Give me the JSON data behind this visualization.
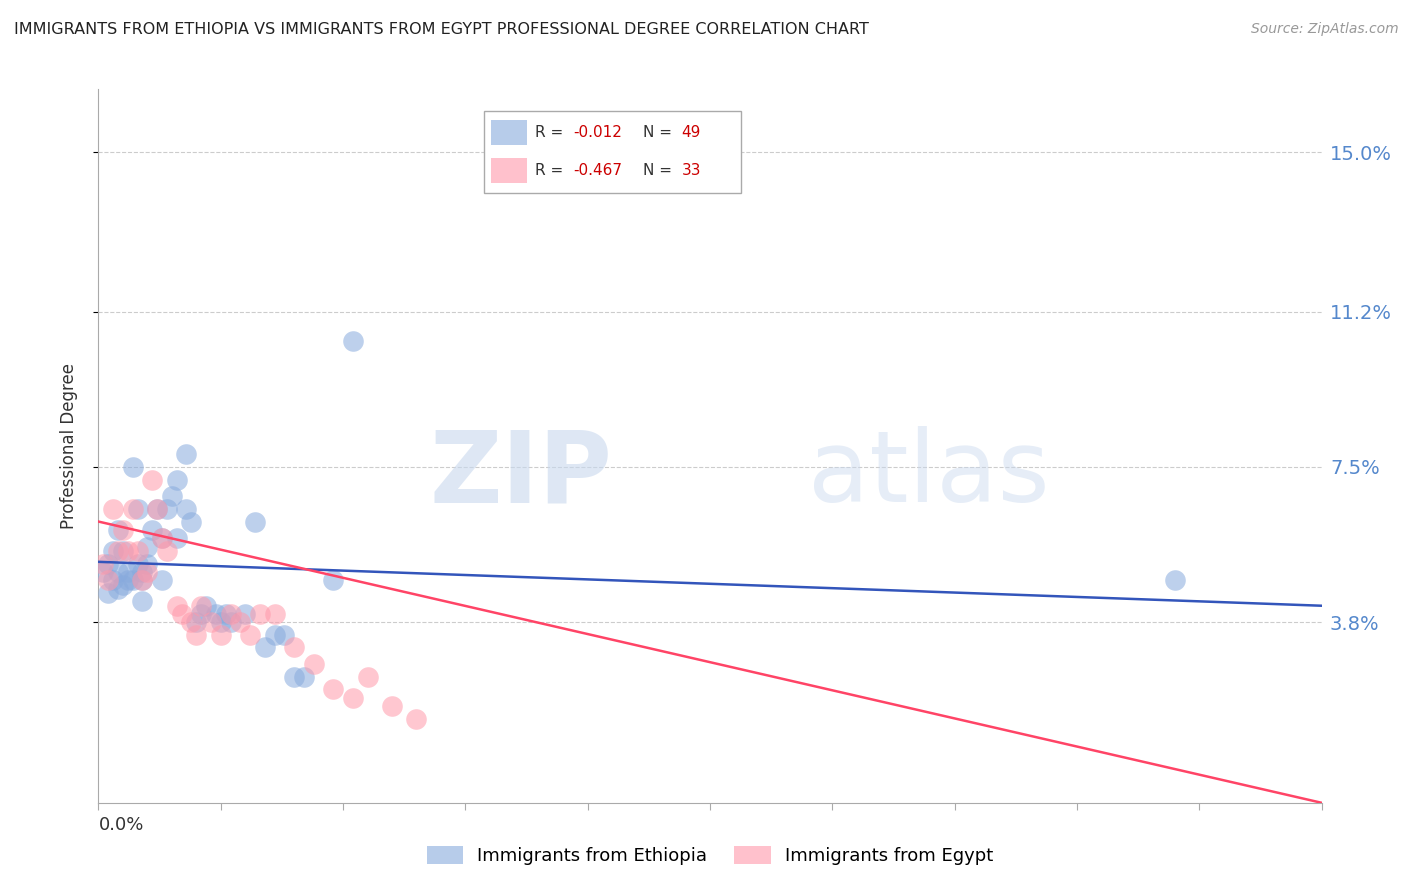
{
  "title": "IMMIGRANTS FROM ETHIOPIA VS IMMIGRANTS FROM EGYPT PROFESSIONAL DEGREE CORRELATION CHART",
  "source": "Source: ZipAtlas.com",
  "ylabel": "Professional Degree",
  "ethiopia_color": "#88AADD",
  "egypt_color": "#FF99AA",
  "line_ethiopia_color": "#3355BB",
  "line_egypt_color": "#FF4466",
  "ytick_values": [
    0.038,
    0.075,
    0.112,
    0.15
  ],
  "ytick_labels": [
    "3.8%",
    "7.5%",
    "11.2%",
    "15.0%"
  ],
  "xlim": [
    0.0,
    0.25
  ],
  "ylim": [
    -0.005,
    0.165
  ],
  "eth_x": [
    0.001,
    0.002,
    0.002,
    0.003,
    0.003,
    0.004,
    0.004,
    0.004,
    0.005,
    0.005,
    0.006,
    0.006,
    0.007,
    0.007,
    0.008,
    0.008,
    0.009,
    0.009,
    0.009,
    0.01,
    0.01,
    0.011,
    0.012,
    0.013,
    0.013,
    0.014,
    0.015,
    0.016,
    0.016,
    0.018,
    0.018,
    0.019,
    0.02,
    0.021,
    0.022,
    0.024,
    0.025,
    0.026,
    0.027,
    0.03,
    0.032,
    0.034,
    0.036,
    0.038,
    0.04,
    0.042,
    0.048,
    0.052,
    0.22
  ],
  "eth_y": [
    0.05,
    0.045,
    0.052,
    0.048,
    0.055,
    0.046,
    0.05,
    0.06,
    0.047,
    0.055,
    0.05,
    0.048,
    0.048,
    0.075,
    0.065,
    0.052,
    0.048,
    0.043,
    0.05,
    0.056,
    0.052,
    0.06,
    0.065,
    0.058,
    0.048,
    0.065,
    0.068,
    0.072,
    0.058,
    0.078,
    0.065,
    0.062,
    0.038,
    0.04,
    0.042,
    0.04,
    0.038,
    0.04,
    0.038,
    0.04,
    0.062,
    0.032,
    0.035,
    0.035,
    0.025,
    0.025,
    0.048,
    0.105,
    0.048
  ],
  "egy_x": [
    0.001,
    0.002,
    0.003,
    0.004,
    0.005,
    0.006,
    0.007,
    0.008,
    0.009,
    0.01,
    0.011,
    0.012,
    0.013,
    0.014,
    0.016,
    0.017,
    0.019,
    0.02,
    0.021,
    0.023,
    0.025,
    0.027,
    0.029,
    0.031,
    0.033,
    0.036,
    0.04,
    0.044,
    0.048,
    0.052,
    0.055,
    0.06,
    0.065
  ],
  "egy_y": [
    0.052,
    0.048,
    0.065,
    0.055,
    0.06,
    0.055,
    0.065,
    0.055,
    0.048,
    0.05,
    0.072,
    0.065,
    0.058,
    0.055,
    0.042,
    0.04,
    0.038,
    0.035,
    0.042,
    0.038,
    0.035,
    0.04,
    0.038,
    0.035,
    0.04,
    0.04,
    0.032,
    0.028,
    0.022,
    0.02,
    0.025,
    0.018,
    0.015
  ],
  "eth_R": -0.012,
  "eth_N": 49,
  "egy_R": -0.467,
  "egy_N": 33,
  "eth_line_start_y": 0.051,
  "eth_line_end_y": 0.049,
  "egy_line_start_y": 0.062,
  "egy_line_end_y": -0.005
}
